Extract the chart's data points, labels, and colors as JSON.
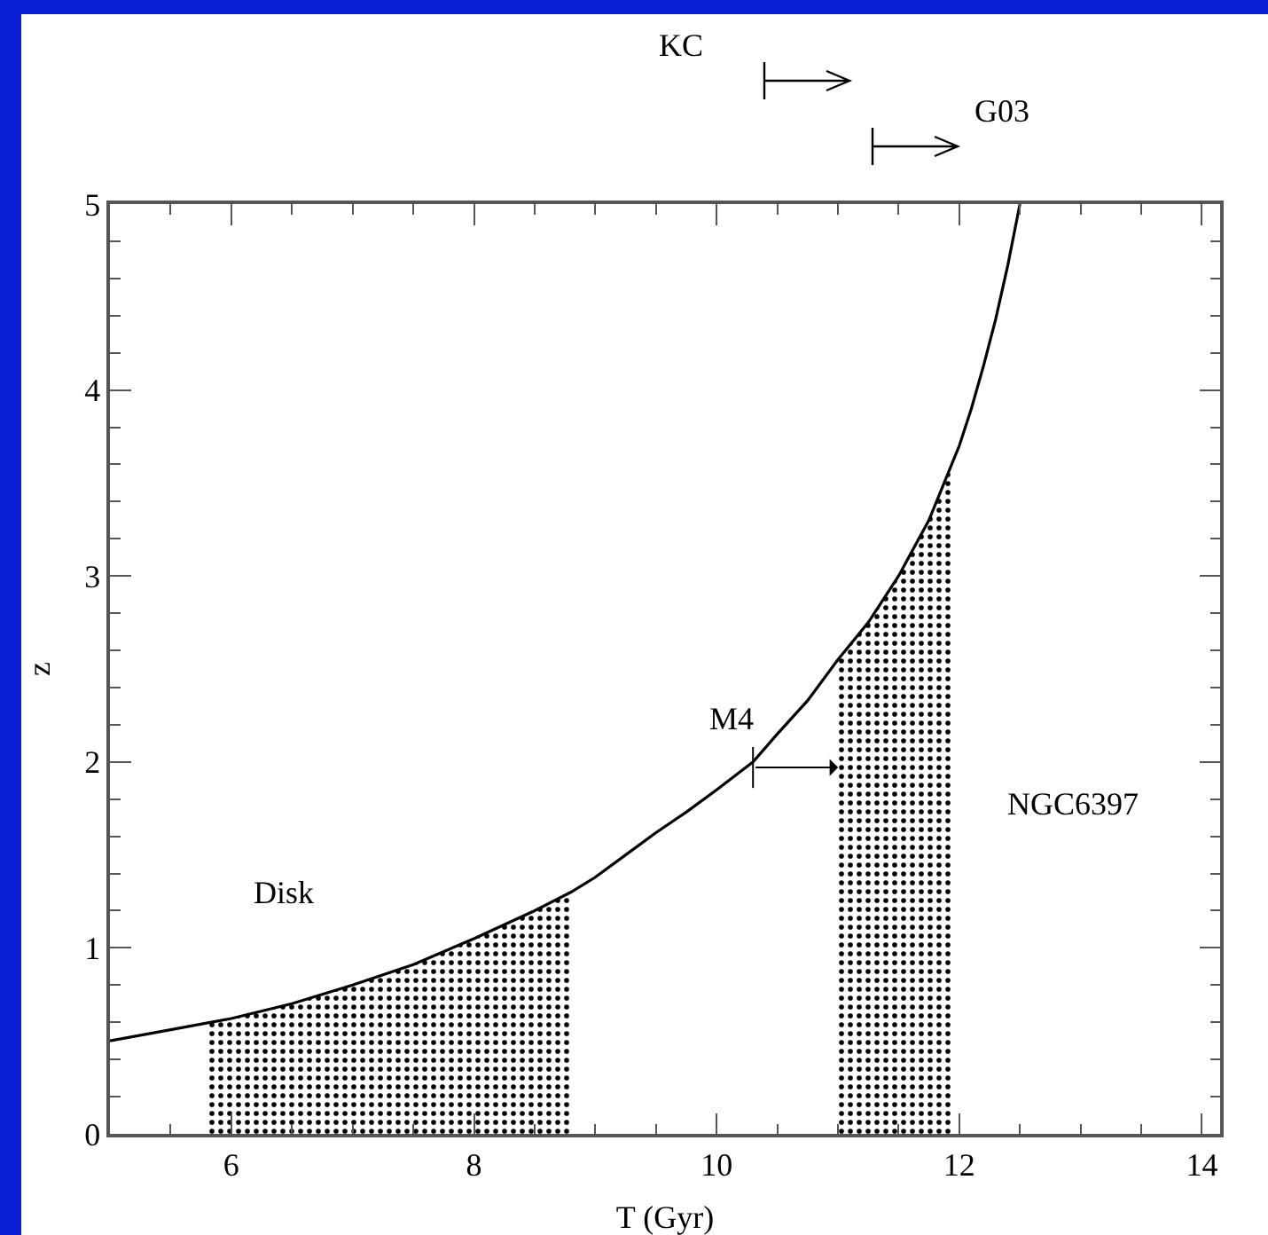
{
  "chart_data": {
    "type": "line",
    "xlabel": "T (Gyr)",
    "ylabel": "z",
    "xlim": [
      5,
      14.15
    ],
    "ylim": [
      0,
      5
    ],
    "xticks": [
      6,
      8,
      10,
      12,
      14
    ],
    "yticks": [
      0,
      1,
      2,
      3,
      4,
      5
    ],
    "grid": false,
    "series": [
      {
        "color": "#000000",
        "x": [
          5,
          5.5,
          6,
          6.5,
          7,
          7.5,
          8,
          8.5,
          8.8,
          9,
          9.25,
          9.5,
          9.75,
          10,
          10.3,
          10.5,
          10.75,
          11,
          11.25,
          11.5,
          11.75,
          12,
          12.1,
          12.2,
          12.3,
          12.4,
          12.5
        ],
        "values": [
          0.5,
          0.56,
          0.62,
          0.7,
          0.8,
          0.91,
          1.05,
          1.2,
          1.3,
          1.38,
          1.5,
          1.62,
          1.73,
          1.85,
          2.0,
          2.15,
          2.33,
          2.55,
          2.75,
          3.0,
          3.3,
          3.7,
          3.9,
          4.13,
          4.38,
          4.67,
          5.0
        ]
      },
      {
        "type": "area",
        "color": "#000000",
        "x": [
          5.8,
          6,
          6.5,
          7,
          7.5,
          8,
          8.5,
          8.8
        ],
        "values": [
          0.6,
          0.62,
          0.7,
          0.8,
          0.91,
          1.05,
          1.2,
          1.3
        ]
      },
      {
        "type": "area",
        "color": "#000000",
        "x": [
          11,
          11.25,
          11.5,
          11.75,
          11.95
        ],
        "values": [
          2.55,
          2.75,
          3.0,
          3.3,
          3.62
        ]
      }
    ],
    "annotations": [
      "KC",
      "G03",
      {
        "text": "M4",
        "x": 10.3,
        "y": 1.97
      },
      "Disk",
      "NGC6397"
    ]
  }
}
